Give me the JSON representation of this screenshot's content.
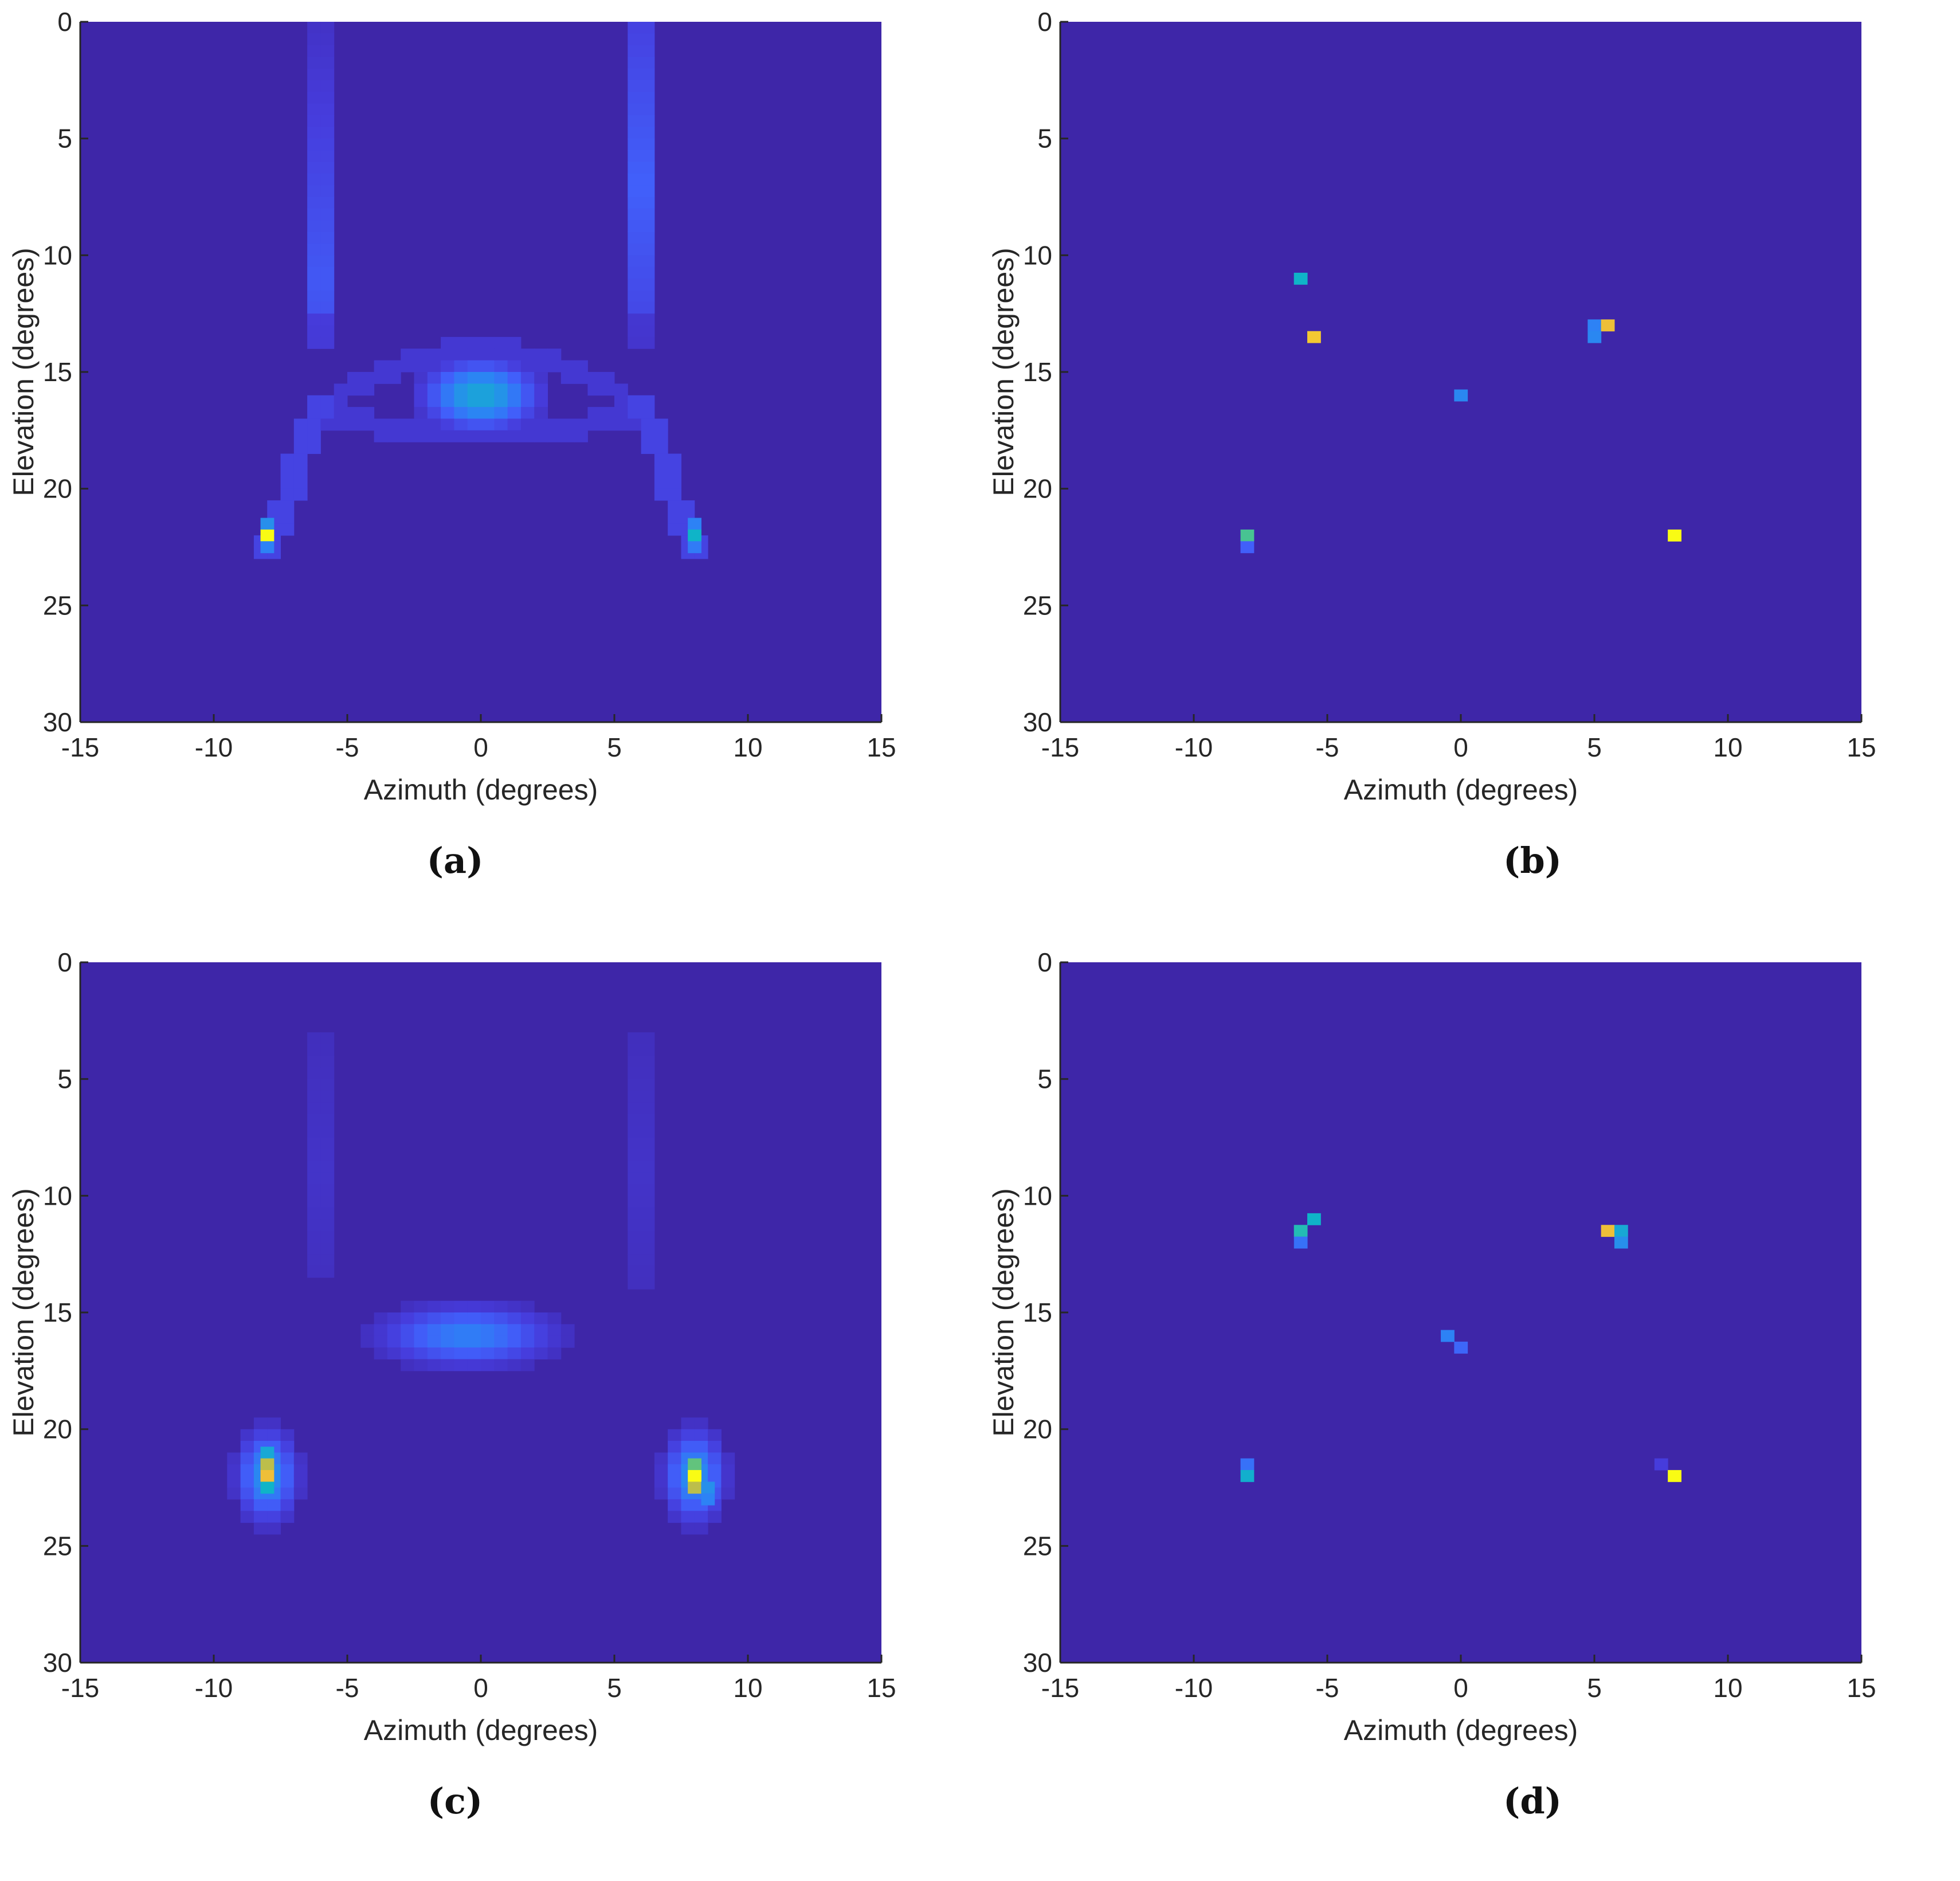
{
  "chart_data": [
    {
      "type": "heatmap",
      "panel_label": "(a)",
      "xlabel": "Azimuth (degrees)",
      "ylabel": "Elevation (degrees)",
      "xlim": [
        -15,
        15
      ],
      "ylim": [
        0,
        30
      ],
      "y_reversed": true,
      "xticks": [
        -15,
        -10,
        -5,
        0,
        5,
        10,
        15
      ],
      "yticks": [
        0,
        5,
        10,
        15,
        20,
        25,
        30
      ],
      "background_color": "#3e26a8",
      "colormap": "parula",
      "cell_size_deg": 0.5,
      "features": [
        {
          "kind": "column",
          "x": -6,
          "y_from": 0,
          "y_to": 13.5,
          "peak": 0.4,
          "peak_y": 11
        },
        {
          "kind": "column",
          "x": 6,
          "y_from": 0,
          "y_to": 13.5,
          "peak": 0.45,
          "peak_y": 7
        },
        {
          "kind": "arc",
          "x_from": -6,
          "x_to": 6,
          "y_center": 16,
          "y_rise": 2.5,
          "value": 0.08
        },
        {
          "kind": "blob",
          "x": 0,
          "y": 16,
          "sx": 1.3,
          "sy": 0.9,
          "peak": 0.45
        },
        {
          "kind": "diag",
          "x_from": -6,
          "y_from": 16,
          "x_to": -8,
          "y_to": 23,
          "value": 0.12
        },
        {
          "kind": "diag",
          "x_from": 6,
          "y_from": 16,
          "x_to": 8,
          "y_to": 23,
          "value": 0.12
        }
      ],
      "cells": [
        {
          "x": -8,
          "y": 21.5,
          "value": 0.35
        },
        {
          "x": -8,
          "y": 22,
          "value": 1.0
        },
        {
          "x": -8,
          "y": 22.5,
          "value": 0.3
        },
        {
          "x": 8,
          "y": 21.5,
          "value": 0.3
        },
        {
          "x": 8,
          "y": 22,
          "value": 0.5
        },
        {
          "x": 8,
          "y": 22.5,
          "value": 0.28
        }
      ]
    },
    {
      "type": "heatmap",
      "panel_label": "(b)",
      "xlabel": "Azimuth (degrees)",
      "ylabel": "Elevation (degrees)",
      "xlim": [
        -15,
        15
      ],
      "ylim": [
        0,
        30
      ],
      "y_reversed": true,
      "xticks": [
        -15,
        -10,
        -5,
        0,
        5,
        10,
        15
      ],
      "yticks": [
        0,
        5,
        10,
        15,
        20,
        25,
        30
      ],
      "background_color": "#3e26a8",
      "colormap": "parula",
      "cell_size_deg": 0.5,
      "features": [],
      "cells": [
        {
          "x": -6,
          "y": 11,
          "value": 0.5
        },
        {
          "x": -5.5,
          "y": 13.5,
          "value": 0.85
        },
        {
          "x": 5,
          "y": 13,
          "value": 0.3
        },
        {
          "x": 5.5,
          "y": 13,
          "value": 0.82
        },
        {
          "x": 5,
          "y": 13.5,
          "value": 0.32
        },
        {
          "x": 0,
          "y": 16,
          "value": 0.32
        },
        {
          "x": -8,
          "y": 22,
          "value": 0.62
        },
        {
          "x": -8,
          "y": 22.5,
          "value": 0.2
        },
        {
          "x": 8,
          "y": 22,
          "value": 1.0
        }
      ]
    },
    {
      "type": "heatmap",
      "panel_label": "(c)",
      "xlabel": "Azimuth (degrees)",
      "ylabel": "Elevation (degrees)",
      "xlim": [
        -15,
        15
      ],
      "ylim": [
        0,
        30
      ],
      "y_reversed": true,
      "xticks": [
        -15,
        -10,
        -5,
        0,
        5,
        10,
        15
      ],
      "yticks": [
        0,
        5,
        10,
        15,
        20,
        25,
        30
      ],
      "background_color": "#3e26a8",
      "colormap": "parula",
      "cell_size_deg": 0.5,
      "features": [
        {
          "kind": "column",
          "x": -6,
          "y_from": 0,
          "y_to": 14.5,
          "peak": 0.14,
          "peak_y": 9
        },
        {
          "kind": "column",
          "x": 6,
          "y_from": 0,
          "y_to": 15,
          "peak": 0.14,
          "peak_y": 9
        },
        {
          "kind": "blob",
          "x": -0.5,
          "y": 16,
          "sx": 2.0,
          "sy": 0.8,
          "peak": 0.3
        },
        {
          "kind": "blob",
          "x": -8,
          "y": 22,
          "sx": 0.7,
          "sy": 1.2,
          "peak": 0.35
        },
        {
          "kind": "blob",
          "x": 8,
          "y": 22,
          "sx": 0.7,
          "sy": 1.2,
          "peak": 0.35
        }
      ],
      "cells": [
        {
          "x": -8,
          "y": 21,
          "value": 0.45
        },
        {
          "x": -8,
          "y": 21.5,
          "value": 0.75
        },
        {
          "x": -8,
          "y": 22,
          "value": 0.82
        },
        {
          "x": -8,
          "y": 22.5,
          "value": 0.5
        },
        {
          "x": 8,
          "y": 21.5,
          "value": 0.65
        },
        {
          "x": 8,
          "y": 22,
          "value": 1.0
        },
        {
          "x": 8,
          "y": 22.5,
          "value": 0.75
        },
        {
          "x": 8.5,
          "y": 22.5,
          "value": 0.35
        },
        {
          "x": 8.5,
          "y": 23,
          "value": 0.3
        }
      ]
    },
    {
      "type": "heatmap",
      "panel_label": "(d)",
      "xlabel": "Azimuth (degrees)",
      "ylabel": "Elevation (degrees)",
      "xlim": [
        -15,
        15
      ],
      "ylim": [
        0,
        30
      ],
      "y_reversed": true,
      "xticks": [
        -15,
        -10,
        -5,
        0,
        5,
        10,
        15
      ],
      "yticks": [
        0,
        5,
        10,
        15,
        20,
        25,
        30
      ],
      "background_color": "#3e26a8",
      "colormap": "parula",
      "cell_size_deg": 0.5,
      "features": [],
      "cells": [
        {
          "x": -5.5,
          "y": 11,
          "value": 0.5
        },
        {
          "x": -6,
          "y": 11.5,
          "value": 0.55
        },
        {
          "x": -6,
          "y": 12,
          "value": 0.25
        },
        {
          "x": 5.5,
          "y": 11.5,
          "value": 0.82
        },
        {
          "x": 6,
          "y": 11.5,
          "value": 0.45
        },
        {
          "x": 6,
          "y": 12,
          "value": 0.35
        },
        {
          "x": -0.5,
          "y": 16,
          "value": 0.3
        },
        {
          "x": 0,
          "y": 16.5,
          "value": 0.22
        },
        {
          "x": -8,
          "y": 21.5,
          "value": 0.25
        },
        {
          "x": -8,
          "y": 22,
          "value": 0.48
        },
        {
          "x": 7.5,
          "y": 21.5,
          "value": 0.1
        },
        {
          "x": 8,
          "y": 22,
          "value": 1.0
        }
      ]
    }
  ]
}
